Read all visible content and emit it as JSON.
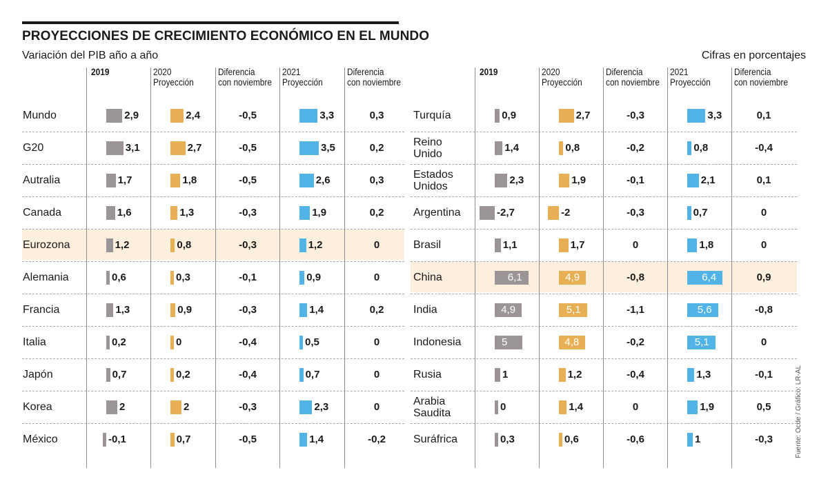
{
  "header": {
    "title": "PROYECCIONES DE CRECIMIENTO ECONÓMICO EN EL MUNDO",
    "subtitle": "Variación del PIB año a año",
    "units": "Cifras en porcentajes",
    "source": "Fuente: Ocde / Gráfico: LR-AL"
  },
  "colors": {
    "y2019": "#9b9598",
    "y2020": "#e8b055",
    "y2021": "#52b4e6",
    "highlight": "#fcefdd"
  },
  "chart_data": {
    "type": "table",
    "title": "PROYECCIONES DE CRECIMIENTO ECONÓMICO EN EL MUNDO",
    "subtitle": "Variación del PIB año a año",
    "columns": [
      "2019",
      "2020\nProyección",
      "Diferencia\ncon noviembre",
      "2021\nProyección",
      "Diferencia\ncon noviembre"
    ],
    "highlighted_rows": [
      "Eurozona",
      "China"
    ],
    "panels": [
      {
        "rows": [
          {
            "name": "Mundo",
            "v2019": "2,9",
            "v2020": "2,4",
            "d2020": "-0,5",
            "v2021": "3,3",
            "d2021": "0,3"
          },
          {
            "name": "G20",
            "v2019": "3,1",
            "v2020": "2,7",
            "d2020": "-0,5",
            "v2021": "3,5",
            "d2021": "0,2"
          },
          {
            "name": "Autralia",
            "v2019": "1,7",
            "v2020": "1,8",
            "d2020": "-0,5",
            "v2021": "2,6",
            "d2021": "0,3"
          },
          {
            "name": "Canada",
            "v2019": "1,6",
            "v2020": "1,3",
            "d2020": "-0,3",
            "v2021": "1,9",
            "d2021": "0,2"
          },
          {
            "name": "Eurozona",
            "v2019": "1,2",
            "v2020": "0,8",
            "d2020": "-0,3",
            "v2021": "1,2",
            "d2021": "0"
          },
          {
            "name": "Alemania",
            "v2019": "0,6",
            "v2020": "0,3",
            "d2020": "-0,1",
            "v2021": "0,9",
            "d2021": "0"
          },
          {
            "name": "Francia",
            "v2019": "1,3",
            "v2020": "0,9",
            "d2020": "-0,3",
            "v2021": "1,4",
            "d2021": "0,2"
          },
          {
            "name": "Italia",
            "v2019": "0,2",
            "v2020": "0",
            "d2020": "-0,4",
            "v2021": "0,5",
            "d2021": "0"
          },
          {
            "name": "Japón",
            "v2019": "0,7",
            "v2020": "0,2",
            "d2020": "-0,4",
            "v2021": "0,7",
            "d2021": "0"
          },
          {
            "name": "Korea",
            "v2019": "2",
            "v2020": "2",
            "d2020": "-0,3",
            "v2021": "2,3",
            "d2021": "0"
          },
          {
            "name": "México",
            "v2019": "-0,1",
            "v2020": "0,7",
            "d2020": "-0,5",
            "v2021": "1,4",
            "d2021": "-0,2"
          }
        ]
      },
      {
        "rows": [
          {
            "name": "Turquía",
            "v2019": "0,9",
            "v2020": "2,7",
            "d2020": "-0,3",
            "v2021": "3,3",
            "d2021": "0,1"
          },
          {
            "name": "Reino\nUnido",
            "v2019": "1,4",
            "v2020": "0,8",
            "d2020": "-0,2",
            "v2021": "0,8",
            "d2021": "-0,4"
          },
          {
            "name": "Estados\nUnidos",
            "v2019": "2,3",
            "v2020": "1,9",
            "d2020": "-0,1",
            "v2021": "2,1",
            "d2021": "0,1"
          },
          {
            "name": "Argentina",
            "v2019": "-2,7",
            "v2020": "-2",
            "d2020": "-0,3",
            "v2021": "0,7",
            "d2021": "0"
          },
          {
            "name": "Brasil",
            "v2019": "1,1",
            "v2020": "1,7",
            "d2020": "0",
            "v2021": "1,8",
            "d2021": "0"
          },
          {
            "name": "China",
            "v2019": "6,1",
            "v2020": "4,9",
            "d2020": "-0,8",
            "v2021": "6,4",
            "d2021": "0,9"
          },
          {
            "name": "India",
            "v2019": "4,9",
            "v2020": "5,1",
            "d2020": "-1,1",
            "v2021": "5,6",
            "d2021": "-0,8"
          },
          {
            "name": "Indonesia",
            "v2019": "5",
            "v2020": "4,8",
            "d2020": "-0,2",
            "v2021": "5,1",
            "d2021": "0"
          },
          {
            "name": "Rusia",
            "v2019": "1",
            "v2020": "1,2",
            "d2020": "-0,4",
            "v2021": "1,3",
            "d2021": "-0,1"
          },
          {
            "name": "Arabia\nSaudita",
            "v2019": "0",
            "v2020": "1,4",
            "d2020": "0",
            "v2021": "1,9",
            "d2021": "0,5"
          },
          {
            "name": "Suráfrica",
            "v2019": "0,3",
            "v2020": "0,6",
            "d2020": "-0,6",
            "v2021": "1",
            "d2021": "-0,3"
          }
        ]
      }
    ]
  }
}
